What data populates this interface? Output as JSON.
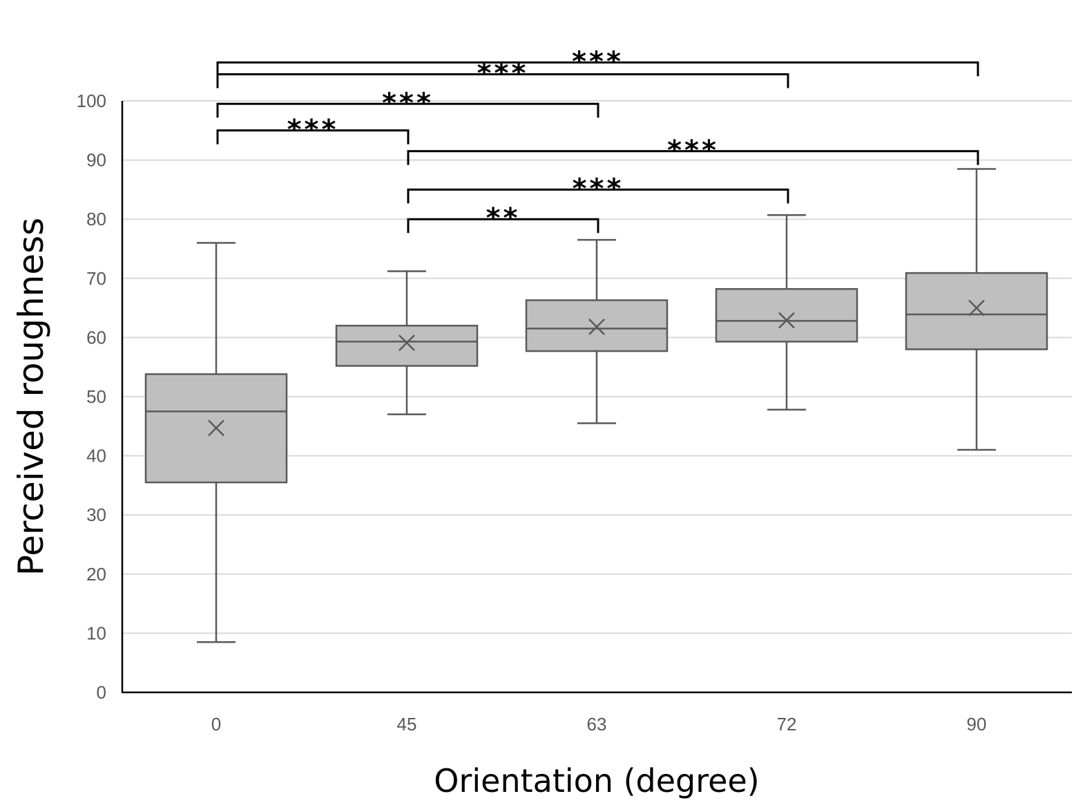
{
  "chart_data": {
    "type": "boxplot",
    "title": "",
    "xlabel": "Orientation (degree)",
    "ylabel": "Perceived roughness",
    "ylim": [
      0,
      100
    ],
    "yticks": [
      0,
      10,
      20,
      30,
      40,
      50,
      60,
      70,
      80,
      90,
      100
    ],
    "grid": true,
    "categories": [
      "0",
      "45",
      "63",
      "72",
      "90"
    ],
    "boxes": [
      {
        "category": "0",
        "min": 8.5,
        "q1": 35.5,
        "median": 47.5,
        "q3": 53.8,
        "max": 76.0,
        "mean": 44.7
      },
      {
        "category": "45",
        "min": 47.0,
        "q1": 55.2,
        "median": 59.3,
        "q3": 62.0,
        "max": 71.2,
        "mean": 59.1
      },
      {
        "category": "63",
        "min": 45.5,
        "q1": 57.7,
        "median": 61.5,
        "q3": 66.3,
        "max": 76.5,
        "mean": 61.8
      },
      {
        "category": "72",
        "min": 47.8,
        "q1": 59.3,
        "median": 62.8,
        "q3": 68.2,
        "max": 80.7,
        "mean": 62.9
      },
      {
        "category": "90",
        "min": 41.0,
        "q1": 58.0,
        "median": 63.9,
        "q3": 70.9,
        "max": 88.5,
        "mean": 65.0
      }
    ],
    "significance": [
      {
        "from": "0",
        "to": "90",
        "label": "***",
        "y": 106.5
      },
      {
        "from": "0",
        "to": "72",
        "label": "***",
        "y": 104.5
      },
      {
        "from": "0",
        "to": "63",
        "label": "***",
        "y": 99.5
      },
      {
        "from": "0",
        "to": "45",
        "label": "***",
        "y": 95.0
      },
      {
        "from": "45",
        "to": "90",
        "label": "***",
        "y": 91.5
      },
      {
        "from": "45",
        "to": "72",
        "label": "***",
        "y": 85.0
      },
      {
        "from": "45",
        "to": "63",
        "label": "**",
        "y": 80.0
      }
    ],
    "colors": {
      "box_fill": "#bfbfbf",
      "box_stroke": "#595959",
      "grid": "#d9d9d9",
      "axis": "#000000",
      "bracket": "#000000"
    }
  }
}
